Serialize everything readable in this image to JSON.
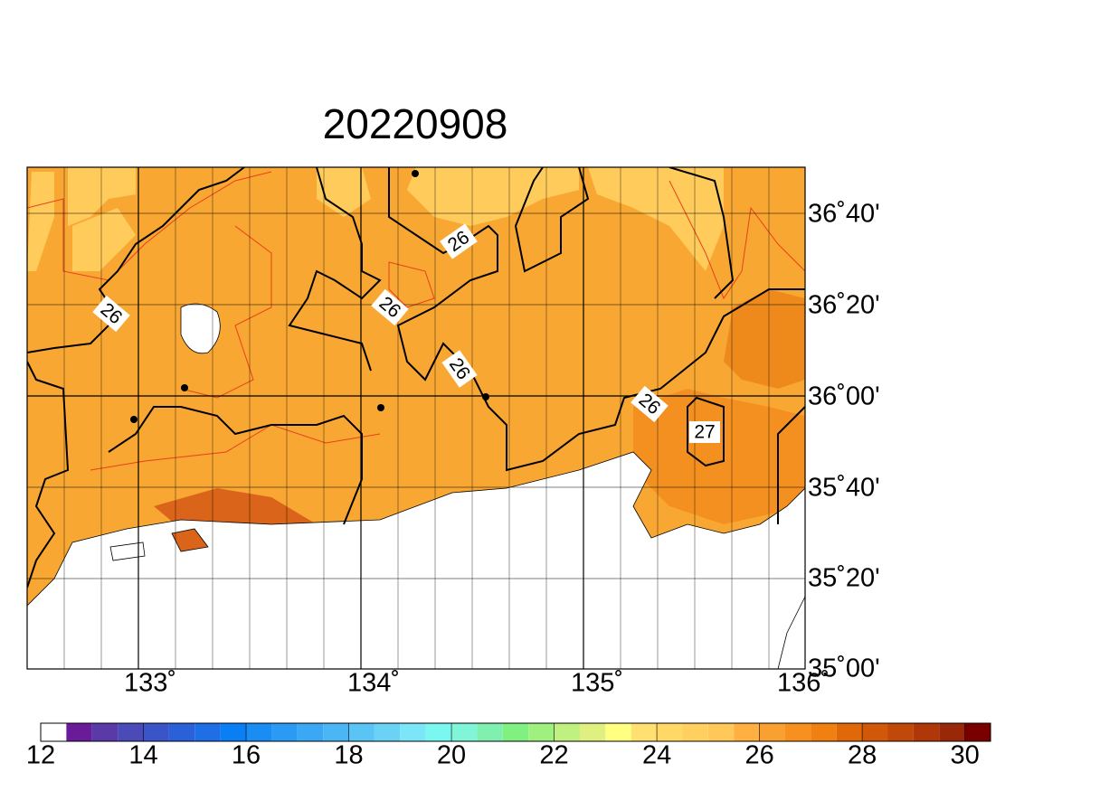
{
  "title": "20220908",
  "map": {
    "lon_labels": [
      "133˚",
      "134˚",
      "135˚",
      "136˚"
    ],
    "lat_labels": [
      "36˚40'",
      "36˚20'",
      "36˚00'",
      "35˚40'",
      "35˚20'",
      "35˚00'"
    ],
    "contour_labels": [
      26,
      26,
      26,
      26,
      26,
      27
    ]
  },
  "colorbar": {
    "ticks": [
      12,
      14,
      16,
      18,
      20,
      22,
      24,
      26,
      28,
      30
    ],
    "colors": [
      "#ffffff",
      "#6a1b9a",
      "#5a3aa8",
      "#4a4ab8",
      "#3a55c8",
      "#2a60d8",
      "#1e6ee6",
      "#0a7ff5",
      "#1a8df5",
      "#2a9af5",
      "#3aa8f5",
      "#4ab6f5",
      "#5ac4f5",
      "#6ad2f5",
      "#7ae6f8",
      "#7af8f0",
      "#80f5d8",
      "#80f0b0",
      "#80f080",
      "#a0f080",
      "#c0f080",
      "#e0f080",
      "#ffff80",
      "#ffe070",
      "#ffd866",
      "#ffd060",
      "#ffc858",
      "#ffb040",
      "#faa030",
      "#f89020",
      "#f08010",
      "#e06808",
      "#d05808",
      "#c04808",
      "#b03808",
      "#982808",
      "#7a0000"
    ]
  }
}
